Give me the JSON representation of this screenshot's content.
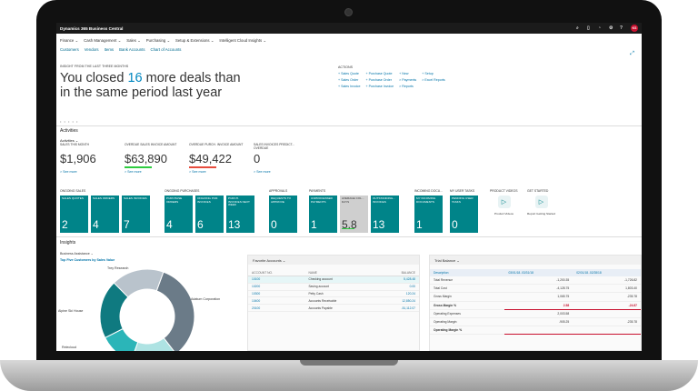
{
  "app": {
    "title": "Dynamics 365 Business Central",
    "user_initials": "KS"
  },
  "nav": {
    "primary": [
      "Finance",
      "Cash Management",
      "Sales",
      "Purchasing",
      "Setup & Extensions",
      "Intelligent Cloud Insights"
    ],
    "secondary": [
      "Customers",
      "Vendors",
      "Items",
      "Bank Accounts",
      "Chart of Accounts"
    ]
  },
  "headline": {
    "caption": "INSIGHT FROM THE LAST THREE MONTHS",
    "line1_pre": "You closed ",
    "number": "16",
    "line1_post": " more deals than",
    "line2": "in the same period last year"
  },
  "actions": {
    "caption": "ACTIONS",
    "col1": [
      "+ Sales Quote",
      "+ Sales Order",
      "+ Sales Invoice"
    ],
    "col2": [
      "+ Purchase Quote",
      "+ Purchase Order",
      "+ Purchase Invoice"
    ],
    "col3": [
      "+ New",
      "> Payments",
      "> Reports"
    ],
    "col4": [
      "+ Setup",
      "> Excel Reports"
    ]
  },
  "carousel_dots": "• • • • •",
  "activities": {
    "title": "Activities",
    "subtitle": "Activities",
    "tiles": [
      {
        "caption": "SALES THIS MONTH",
        "value": "$1,906",
        "bar_color": "",
        "more": "> See more"
      },
      {
        "caption": "OVERDUE SALES INVOICE AMOUNT",
        "value": "$63,890",
        "bar_color": "#2ecc40",
        "more": "> See more"
      },
      {
        "caption": "OVERDUE PURCH. INVOICE AMOUNT",
        "value": "$49,422",
        "bar_color": "#e74c3c",
        "more": "> See more"
      },
      {
        "caption": "SALES INVOICES PREDICT... OVERDUE",
        "value": "0",
        "bar_color": "",
        "more": "> See more"
      }
    ]
  },
  "groups": [
    "ONGOING SALES",
    "ONGOING PURCHASES",
    "APPROVALS",
    "PAYMENTS",
    "INCOMING DOCU...",
    "MY USER TASKS",
    "PRODUCT VIDEOS",
    "GET STARTED"
  ],
  "cue_tiles": [
    {
      "caption": "SALES QUOTES",
      "value": "2"
    },
    {
      "caption": "SALES ORDERS",
      "value": "4"
    },
    {
      "caption": "SALES INVOICES",
      "value": "7"
    },
    {
      "caption": "PURCHASE ORDERS",
      "value": "4"
    },
    {
      "caption": "ONGOING PUR. INVOICES",
      "value": "6"
    },
    {
      "caption": "PURCH. INVOICES NEXT WEEK",
      "value": "13"
    },
    {
      "caption": "REQUESTS TO APPROVE",
      "value": "0"
    },
    {
      "caption": "UNPROCESSED PAYMENTS",
      "value": "1"
    },
    {
      "caption": "AVERAGE COL... DAYS",
      "value": "5.8"
    },
    {
      "caption": "OUTSTANDING... INVOICES",
      "value": "13"
    },
    {
      "caption": "MY INCOMING DOCUMENTS",
      "value": "1"
    },
    {
      "caption": "PENDING USER TASKS",
      "value": "0"
    }
  ],
  "icon_tiles": [
    {
      "label": "Product Videos"
    },
    {
      "label": "Report Getting Started"
    }
  ],
  "insights": {
    "title": "Insights",
    "ba_caption": "Business Assistance",
    "ba_sub": "Top Five Customers by Sales Value",
    "chart_data": {
      "type": "pie",
      "categories": [
        "Adatum Corporation",
        "Trey Research",
        "Alpine Ski House",
        "Relecloud",
        "Other"
      ],
      "values": [
        34,
        16,
        12,
        20,
        18
      ],
      "colors": [
        "#6b7b88",
        "#aee3e3",
        "#2bb5b8",
        "#0f7a80",
        "#b9c3cc"
      ],
      "title": "Top Five Customers by Sales Value"
    }
  },
  "favorites": {
    "title": "Favorite Accounts",
    "headers": [
      "ACCOUNT NO.",
      "NAME",
      "BALANCE"
    ],
    "rows": [
      {
        "no": "10100",
        "name": "Checking account",
        "bal": "5,428.48"
      },
      {
        "no": "10200",
        "name": "Saving account",
        "bal": "0.00"
      },
      {
        "no": "10300",
        "name": "Petty Cash",
        "bal": "120.24"
      },
      {
        "no": "10400",
        "name": "Accounts Receivable",
        "bal": "12,850.24"
      },
      {
        "no": "20100",
        "name": "Accounts Payable",
        "bal": "-51,112.07"
      }
    ]
  },
  "trial": {
    "title": "Trial Balance",
    "headers": [
      "Description",
      "03/01/18..03/31/18",
      "02/01/18..02/28/18"
    ],
    "rows": [
      {
        "d": "Total Revenue",
        "a": "-1,200.35",
        "b": "-1,726.82",
        "bold": false,
        "neg": false
      },
      {
        "d": "Total Cost",
        "a": "-4,128.75",
        "b": "1,803.40",
        "bold": false,
        "neg": false
      },
      {
        "d": "Gross Margin",
        "a": "1,065.75",
        "b": "-235.78",
        "bold": false,
        "neg": false
      },
      {
        "d": "Gross Margin %",
        "a": "2.58",
        "b": "-24.87",
        "bold": true,
        "neg": true
      },
      {
        "d": "Operating Expenses",
        "a": "2,003.58",
        "b": "",
        "bold": false,
        "neg": false
      },
      {
        "d": "Operating Margin",
        "a": "-905.25",
        "b": "-235.78",
        "bold": false,
        "neg": false
      },
      {
        "d": "Operating Margin %",
        "a": "",
        "b": "",
        "bold": true,
        "neg": true
      }
    ]
  }
}
